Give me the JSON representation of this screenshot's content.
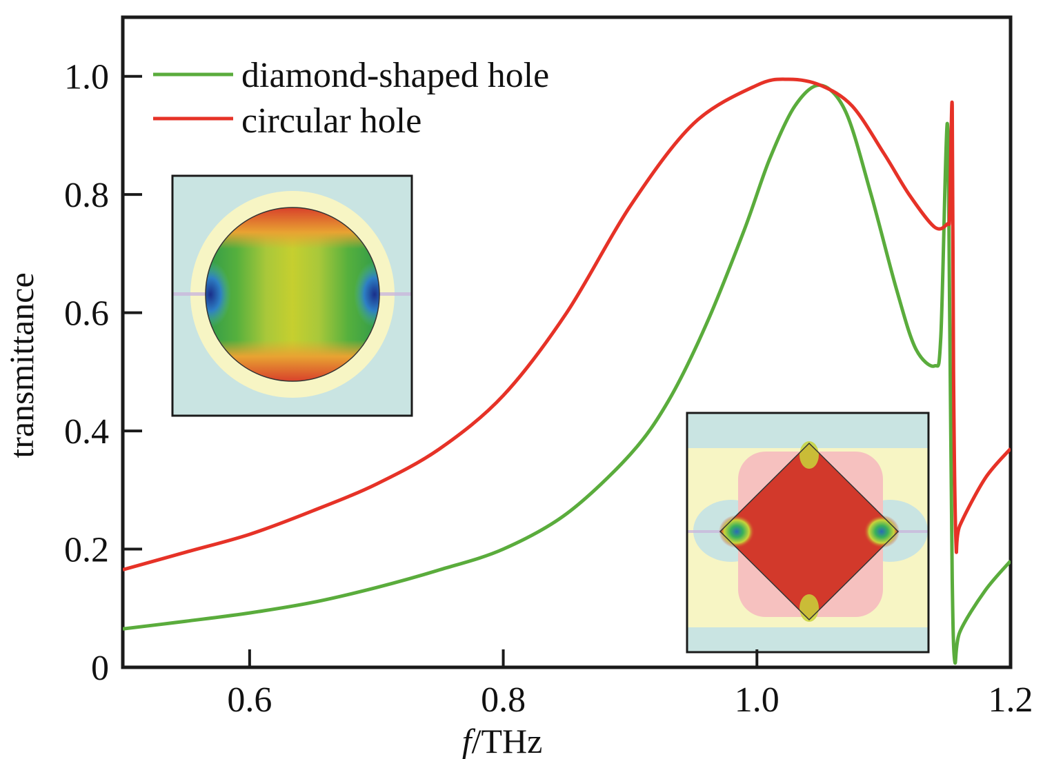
{
  "chart_data": {
    "type": "line",
    "xlabel_italic": "f",
    "xlabel_rest": "/THz",
    "ylabel": "transmittance",
    "xlim": [
      0.5,
      1.2
    ],
    "ylim": [
      0,
      1.1
    ],
    "x_ticks": [
      0.6,
      0.8,
      1.0,
      1.2
    ],
    "x_tick_labels": [
      "0.6",
      "0.8",
      "1.0",
      "1.2"
    ],
    "y_ticks": [
      0,
      0.2,
      0.4,
      0.6,
      0.8,
      1.0
    ],
    "y_tick_labels": [
      "0",
      "0.2",
      "0.4",
      "0.6",
      "0.8",
      "1.0"
    ],
    "grid": false,
    "legend_position": "top-left",
    "series": [
      {
        "name": "diamond-shaped hole",
        "color": "#5aac3c",
        "points": [
          [
            0.5,
            0.065
          ],
          [
            0.55,
            0.078
          ],
          [
            0.6,
            0.092
          ],
          [
            0.65,
            0.11
          ],
          [
            0.7,
            0.135
          ],
          [
            0.75,
            0.165
          ],
          [
            0.8,
            0.2
          ],
          [
            0.85,
            0.26
          ],
          [
            0.9,
            0.36
          ],
          [
            0.93,
            0.45
          ],
          [
            0.96,
            0.58
          ],
          [
            0.99,
            0.74
          ],
          [
            1.01,
            0.86
          ],
          [
            1.03,
            0.95
          ],
          [
            1.05,
            0.985
          ],
          [
            1.07,
            0.94
          ],
          [
            1.09,
            0.8
          ],
          [
            1.11,
            0.64
          ],
          [
            1.125,
            0.54
          ],
          [
            1.14,
            0.51
          ],
          [
            1.145,
            0.56
          ],
          [
            1.15,
            0.92
          ],
          [
            1.152,
            0.6
          ],
          [
            1.154,
            0.15
          ],
          [
            1.156,
            0.01
          ],
          [
            1.16,
            0.06
          ],
          [
            1.18,
            0.13
          ],
          [
            1.2,
            0.18
          ]
        ]
      },
      {
        "name": "circular hole",
        "color": "#e63227",
        "points": [
          [
            0.5,
            0.165
          ],
          [
            0.55,
            0.195
          ],
          [
            0.6,
            0.225
          ],
          [
            0.65,
            0.265
          ],
          [
            0.7,
            0.31
          ],
          [
            0.75,
            0.37
          ],
          [
            0.8,
            0.46
          ],
          [
            0.85,
            0.6
          ],
          [
            0.9,
            0.78
          ],
          [
            0.95,
            0.92
          ],
          [
            1.0,
            0.985
          ],
          [
            1.025,
            0.995
          ],
          [
            1.05,
            0.985
          ],
          [
            1.075,
            0.95
          ],
          [
            1.1,
            0.87
          ],
          [
            1.12,
            0.8
          ],
          [
            1.14,
            0.745
          ],
          [
            1.15,
            0.75
          ],
          [
            1.152,
            0.77
          ],
          [
            1.154,
            0.95
          ],
          [
            1.155,
            0.5
          ],
          [
            1.157,
            0.21
          ],
          [
            1.16,
            0.24
          ],
          [
            1.18,
            0.32
          ],
          [
            1.2,
            0.37
          ]
        ]
      }
    ]
  },
  "insets": [
    {
      "shape": "circle",
      "position": "left-middle"
    },
    {
      "shape": "diamond",
      "position": "bottom-right"
    }
  ]
}
